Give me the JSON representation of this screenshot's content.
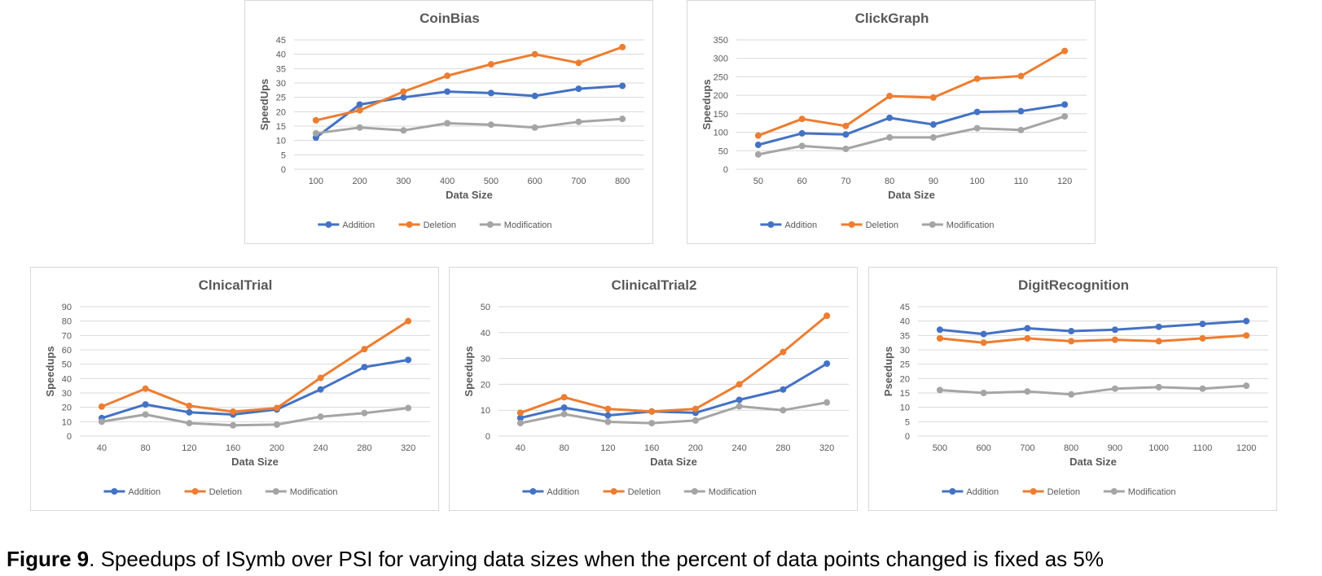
{
  "caption": {
    "label": "Figure 9",
    "text": ". Speedups of ISymb over PSI for varying data sizes when the percent of data points changed is fixed as 5%"
  },
  "colors": {
    "addition": "#4472c4",
    "deletion": "#ed7d31",
    "modification": "#a5a5a5"
  },
  "chart_data": [
    {
      "type": "line",
      "title": "CoinBias",
      "xlabel": "Data Size",
      "ylabel": "SpeedUps",
      "categories": [
        "100",
        "200",
        "300",
        "400",
        "500",
        "600",
        "700",
        "800"
      ],
      "ylim": [
        0,
        45
      ],
      "ystep": 5,
      "legend_position": "bottom",
      "grid": true,
      "series": [
        {
          "name": "Addition",
          "values": [
            11,
            22.5,
            25,
            27,
            26.5,
            25.5,
            28,
            29
          ]
        },
        {
          "name": "Deletion",
          "values": [
            17,
            20.5,
            27,
            32.5,
            36.5,
            40,
            37,
            42.5
          ]
        },
        {
          "name": "Modification",
          "values": [
            12.5,
            14.5,
            13.5,
            16,
            15.5,
            14.5,
            16.5,
            17.5
          ]
        }
      ]
    },
    {
      "type": "line",
      "title": "ClickGraph",
      "xlabel": "Data Size",
      "ylabel": "Speedups",
      "categories": [
        "50",
        "60",
        "70",
        "80",
        "90",
        "100",
        "110",
        "120"
      ],
      "ylim": [
        0,
        350
      ],
      "ystep": 50,
      "legend_position": "bottom",
      "grid": true,
      "series": [
        {
          "name": "Addition",
          "values": [
            66,
            97,
            94,
            139,
            121,
            155,
            157,
            175
          ]
        },
        {
          "name": "Deletion",
          "values": [
            91,
            136,
            117,
            198,
            194,
            245,
            252,
            320
          ]
        },
        {
          "name": "Modification",
          "values": [
            40,
            63,
            55,
            86,
            86,
            111,
            106,
            143
          ]
        }
      ]
    },
    {
      "type": "line",
      "title": "ClnicalTrial",
      "xlabel": "Data Size",
      "ylabel": "Speedups",
      "categories": [
        "40",
        "80",
        "120",
        "160",
        "200",
        "240",
        "280",
        "320"
      ],
      "ylim": [
        0,
        90
      ],
      "ystep": 10,
      "legend_position": "bottom",
      "grid": true,
      "series": [
        {
          "name": "Addition",
          "values": [
            12.5,
            22,
            16.5,
            15,
            18.5,
            32.5,
            48,
            53
          ]
        },
        {
          "name": "Deletion",
          "values": [
            20.5,
            33,
            21,
            17,
            19.5,
            40.5,
            60.5,
            80
          ]
        },
        {
          "name": "Modification",
          "values": [
            10,
            15,
            9,
            7.5,
            8,
            13.5,
            16,
            19.5
          ]
        }
      ]
    },
    {
      "type": "line",
      "title": "ClinicalTrial2",
      "xlabel": "Data Size",
      "ylabel": "Speedups",
      "categories": [
        "40",
        "80",
        "120",
        "160",
        "200",
        "240",
        "280",
        "320"
      ],
      "ylim": [
        0,
        50
      ],
      "ystep": 10,
      "legend_position": "bottom",
      "grid": true,
      "series": [
        {
          "name": "Addition",
          "values": [
            7,
            11,
            8,
            9.5,
            9,
            14,
            18,
            28
          ]
        },
        {
          "name": "Deletion",
          "values": [
            9,
            15,
            10.5,
            9.5,
            10.5,
            20,
            32.5,
            46.5
          ]
        },
        {
          "name": "Modification",
          "values": [
            5,
            8.5,
            5.5,
            5,
            6,
            11.5,
            10,
            13
          ]
        }
      ]
    },
    {
      "type": "line",
      "title": "DigitRecognition",
      "xlabel": "Data Size",
      "ylabel": "Pseedups",
      "categories": [
        "500",
        "600",
        "700",
        "800",
        "900",
        "1000",
        "1100",
        "1200"
      ],
      "ylim": [
        0,
        45
      ],
      "ystep": 5,
      "legend_position": "bottom",
      "grid": true,
      "series": [
        {
          "name": "Addition",
          "values": [
            37,
            35.5,
            37.5,
            36.5,
            37,
            38,
            39,
            40
          ]
        },
        {
          "name": "Deletion",
          "values": [
            34,
            32.5,
            34,
            33,
            33.5,
            33,
            34,
            35
          ]
        },
        {
          "name": "Modification",
          "values": [
            16,
            15,
            15.5,
            14.5,
            16.5,
            17,
            16.5,
            17.5
          ]
        }
      ]
    }
  ]
}
